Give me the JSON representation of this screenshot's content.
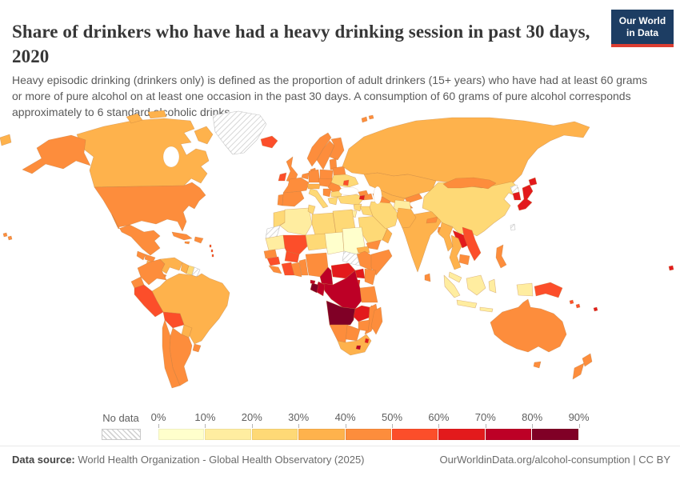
{
  "header": {
    "title": "Share of drinkers who have had a heavy drinking session in past 30 days, 2020",
    "subtitle": "Heavy episodic drinking (drinkers only) is defined as the proportion of adult drinkers (15+ years) who have had at least 60 grams or more of pure alcohol on at least one occasion in the past 30 days. A consumption of 60 grams of pure alcohol corresponds approximately to 6 standard alcoholic drinks.",
    "logo": {
      "line1": "Our World",
      "line2": "in Data",
      "bg_color": "#1d3d63",
      "accent_color": "#dc3e32"
    }
  },
  "legend": {
    "no_data_label": "No data",
    "tick_labels": [
      "0%",
      "10%",
      "20%",
      "30%",
      "40%",
      "50%",
      "60%",
      "70%",
      "80%",
      "90%"
    ],
    "bin_colors": [
      "#ffffcc",
      "#ffeda0",
      "#fed976",
      "#feb24c",
      "#fd8d3c",
      "#fc4e2a",
      "#e31a1c",
      "#bd0026",
      "#800026"
    ]
  },
  "footer": {
    "datasource_label": "Data source:",
    "datasource_value": " World Health Organization - Global Health Observatory (2025)",
    "link_text": "OurWorldinData.org/alcohol-consumption | CC BY"
  },
  "chart_data": {
    "type": "choropleth",
    "title": "Share of drinkers who have had a heavy drinking session in past 30 days",
    "year": "2020",
    "unit": "% of adult drinkers",
    "legend_position": "bottom",
    "bins": [
      {
        "range": "0-10%",
        "color": "#ffffcc"
      },
      {
        "range": "10-20%",
        "color": "#ffeda0"
      },
      {
        "range": "20-30%",
        "color": "#fed976"
      },
      {
        "range": "30-40%",
        "color": "#feb24c"
      },
      {
        "range": "40-50%",
        "color": "#fd8d3c"
      },
      {
        "range": "50-60%",
        "color": "#fc4e2a"
      },
      {
        "range": "60-70%",
        "color": "#e31a1c"
      },
      {
        "range": "70-80%",
        "color": "#bd0026"
      },
      {
        "range": "80-90%",
        "color": "#800026"
      }
    ],
    "no_data": {
      "label": "No data",
      "pattern": "diagonal-hatch"
    },
    "countries": {
      "united_states": {
        "name": "United States",
        "bin": 4
      },
      "canada": {
        "name": "Canada",
        "bin": 3
      },
      "greenland": {
        "name": "Greenland",
        "bin": -1
      },
      "mexico": {
        "name": "Mexico",
        "bin": 4
      },
      "guatemala": {
        "name": "Guatemala",
        "bin": 4
      },
      "honduras": {
        "name": "Honduras",
        "bin": 4
      },
      "nicaragua": {
        "name": "Nicaragua",
        "bin": 3
      },
      "panama": {
        "name": "Panama / Costa Rica",
        "bin": 4
      },
      "cuba": {
        "name": "Cuba",
        "bin": 4
      },
      "hispaniola": {
        "name": "Haiti / Dominican Republic",
        "bin": 4
      },
      "jamaica": {
        "name": "Jamaica",
        "bin": 4
      },
      "lesser_antilles": {
        "name": "Lesser Antilles",
        "bin": 5
      },
      "colombia": {
        "name": "Colombia",
        "bin": 4
      },
      "venezuela": {
        "name": "Venezuela",
        "bin": 3
      },
      "guyana": {
        "name": "Guyana",
        "bin": 3
      },
      "suriname": {
        "name": "Suriname",
        "bin": 2
      },
      "french_guiana": {
        "name": "French Guiana",
        "bin": -1
      },
      "ecuador": {
        "name": "Ecuador",
        "bin": 4
      },
      "peru": {
        "name": "Peru",
        "bin": 5
      },
      "brazil": {
        "name": "Brazil",
        "bin": 3
      },
      "bolivia": {
        "name": "Bolivia",
        "bin": 5
      },
      "paraguay": {
        "name": "Paraguay",
        "bin": 3
      },
      "uruguay": {
        "name": "Uruguay",
        "bin": 4
      },
      "argentina": {
        "name": "Argentina",
        "bin": 4
      },
      "chile": {
        "name": "Chile",
        "bin": 4
      },
      "iceland": {
        "name": "Iceland",
        "bin": 5
      },
      "ireland": {
        "name": "Ireland",
        "bin": 5
      },
      "united_kingdom": {
        "name": "United Kingdom",
        "bin": 4
      },
      "portugal": {
        "name": "Portugal",
        "bin": 4
      },
      "spain": {
        "name": "Spain",
        "bin": 4
      },
      "france": {
        "name": "France",
        "bin": 4
      },
      "belgium_netherlands": {
        "name": "Belgium / Netherlands",
        "bin": 4
      },
      "germany": {
        "name": "Germany",
        "bin": 4
      },
      "denmark": {
        "name": "Denmark",
        "bin": 4
      },
      "norway": {
        "name": "Norway",
        "bin": 4
      },
      "sweden": {
        "name": "Sweden",
        "bin": 4
      },
      "finland": {
        "name": "Finland",
        "bin": 4
      },
      "baltic_states": {
        "name": "Baltic states",
        "bin": 4
      },
      "poland": {
        "name": "Poland",
        "bin": 4
      },
      "belarus": {
        "name": "Belarus",
        "bin": 4
      },
      "ukraine": {
        "name": "Ukraine",
        "bin": 2
      },
      "moldova": {
        "name": "Moldova",
        "bin": 5
      },
      "central_europe": {
        "name": "Czechia / Slovakia / Hungary",
        "bin": 4
      },
      "switzerland_austria": {
        "name": "Switzerland / Austria",
        "bin": 3
      },
      "italy": {
        "name": "Italy",
        "bin": 2
      },
      "balkans": {
        "name": "Serbia / Balkans",
        "bin": 4
      },
      "romania": {
        "name": "Romania",
        "bin": 4
      },
      "bulgaria": {
        "name": "Bulgaria",
        "bin": 2
      },
      "greece": {
        "name": "Greece",
        "bin": 2
      },
      "russia": {
        "name": "Russia",
        "bin": 3
      },
      "turkey": {
        "name": "Turkey",
        "bin": 2
      },
      "georgia": {
        "name": "Georgia",
        "bin": 4
      },
      "armenia": {
        "name": "Armenia",
        "bin": 6
      },
      "azerbaijan": {
        "name": "Azerbaijan",
        "bin": 4
      },
      "syria": {
        "name": "Syria",
        "bin": 2
      },
      "iraq": {
        "name": "Iraq",
        "bin": 2
      },
      "jordan_israel": {
        "name": "Jordan / Israel",
        "bin": 1
      },
      "saudi_arabia": {
        "name": "Saudi Arabia",
        "bin": 2
      },
      "yemen": {
        "name": "Yemen",
        "bin": 4
      },
      "oman": {
        "name": "Oman",
        "bin": 3
      },
      "iran": {
        "name": "Iran",
        "bin": 2
      },
      "afghanistan": {
        "name": "Afghanistan",
        "bin": 1
      },
      "pakistan": {
        "name": "Pakistan",
        "bin": 3
      },
      "kazakhstan": {
        "name": "Kazakhstan",
        "bin": 3
      },
      "uzbekistan": {
        "name": "Uzbekistan",
        "bin": 3
      },
      "turkmenistan": {
        "name": "Turkmenistan",
        "bin": 4
      },
      "kyrgyzstan": {
        "name": "Kyrgyzstan",
        "bin": 4
      },
      "tajikistan": {
        "name": "Tajikistan",
        "bin": 4
      },
      "china": {
        "name": "China",
        "bin": 2
      },
      "mongolia": {
        "name": "Mongolia",
        "bin": 4
      },
      "north_korea": {
        "name": "North Korea",
        "bin": -1
      },
      "south_korea": {
        "name": "South Korea",
        "bin": 6
      },
      "japan": {
        "name": "Japan",
        "bin": 6
      },
      "taiwan": {
        "name": "Taiwan",
        "bin": -1
      },
      "india": {
        "name": "India",
        "bin": 3
      },
      "nepal": {
        "name": "Nepal",
        "bin": 4
      },
      "bangladesh": {
        "name": "Bangladesh",
        "bin": 4
      },
      "sri_lanka": {
        "name": "Sri Lanka",
        "bin": 4
      },
      "myanmar": {
        "name": "Myanmar",
        "bin": 3
      },
      "thailand": {
        "name": "Thailand",
        "bin": 3
      },
      "laos": {
        "name": "Laos",
        "bin": 6
      },
      "vietnam": {
        "name": "Vietnam",
        "bin": 5
      },
      "cambodia": {
        "name": "Cambodia",
        "bin": 4
      },
      "malaysia": {
        "name": "Malaysia",
        "bin": 1
      },
      "indonesia": {
        "name": "Indonesia",
        "bin": 1
      },
      "philippines": {
        "name": "Philippines",
        "bin": 4
      },
      "papua_new_guinea": {
        "name": "Papua New Guinea",
        "bin": 5
      },
      "solomon_islands": {
        "name": "Solomon Islands",
        "bin": 5
      },
      "fiji": {
        "name": "Fiji",
        "bin": 6
      },
      "australia": {
        "name": "Australia",
        "bin": 4
      },
      "new_zealand": {
        "name": "New Zealand",
        "bin": 4
      },
      "morocco": {
        "name": "Morocco",
        "bin": 2
      },
      "western_sahara": {
        "name": "Western Sahara",
        "bin": -1
      },
      "algeria": {
        "name": "Algeria",
        "bin": 1
      },
      "tunisia": {
        "name": "Tunisia",
        "bin": 2
      },
      "libya": {
        "name": "Libya",
        "bin": 2
      },
      "egypt": {
        "name": "Egypt",
        "bin": 2
      },
      "mauritania": {
        "name": "Mauritania",
        "bin": 1
      },
      "mali": {
        "name": "Mali",
        "bin": 5
      },
      "niger": {
        "name": "Niger",
        "bin": 2
      },
      "chad": {
        "name": "Chad",
        "bin": 0
      },
      "sudan": {
        "name": "Sudan",
        "bin": 0
      },
      "south_sudan": {
        "name": "South Sudan",
        "bin": -1
      },
      "eritrea_djibouti": {
        "name": "Eritrea / Djibouti",
        "bin": 3
      },
      "ethiopia": {
        "name": "Ethiopia",
        "bin": 4
      },
      "somalia": {
        "name": "Somalia",
        "bin": 4
      },
      "senegal": {
        "name": "Senegal",
        "bin": 4
      },
      "guinea": {
        "name": "Guinea",
        "bin": 5
      },
      "sierra_leone_liberia": {
        "name": "Sierra Leone / Liberia",
        "bin": 4
      },
      "ivory_coast": {
        "name": "Cote d'Ivoire",
        "bin": 5
      },
      "burkina_faso": {
        "name": "Burkina Faso",
        "bin": 5
      },
      "ghana": {
        "name": "Ghana",
        "bin": 4
      },
      "togo_benin": {
        "name": "Togo / Benin",
        "bin": 4
      },
      "nigeria": {
        "name": "Nigeria",
        "bin": 4
      },
      "cameroon": {
        "name": "Cameroon",
        "bin": 7
      },
      "central_african_republic": {
        "name": "Central African Republic",
        "bin": 6
      },
      "uganda": {
        "name": "Uganda",
        "bin": 6
      },
      "kenya": {
        "name": "Kenya",
        "bin": 4
      },
      "rwanda_burundi": {
        "name": "Rwanda / Burundi",
        "bin": 6
      },
      "democratic_republic_of_congo": {
        "name": "Democratic Republic of Congo",
        "bin": 7
      },
      "congo": {
        "name": "Congo",
        "bin": 7
      },
      "gabon": {
        "name": "Gabon",
        "bin": 8
      },
      "equatorial_guinea": {
        "name": "Equatorial Guinea",
        "bin": 7
      },
      "tanzania": {
        "name": "Tanzania",
        "bin": 4
      },
      "angola": {
        "name": "Angola",
        "bin": 8
      },
      "zambia": {
        "name": "Zambia",
        "bin": 6
      },
      "malawi": {
        "name": "Malawi",
        "bin": 5
      },
      "mozambique": {
        "name": "Mozambique",
        "bin": 4
      },
      "zimbabwe": {
        "name": "Zimbabwe",
        "bin": 4
      },
      "botswana": {
        "name": "Botswana",
        "bin": 4
      },
      "namibia": {
        "name": "Namibia",
        "bin": 4
      },
      "south_africa": {
        "name": "South Africa",
        "bin": 3
      },
      "lesotho": {
        "name": "Lesotho",
        "bin": 7
      },
      "eswatini": {
        "name": "Eswatini",
        "bin": 6
      },
      "madagascar": {
        "name": "Madagascar",
        "bin": 4
      }
    }
  }
}
